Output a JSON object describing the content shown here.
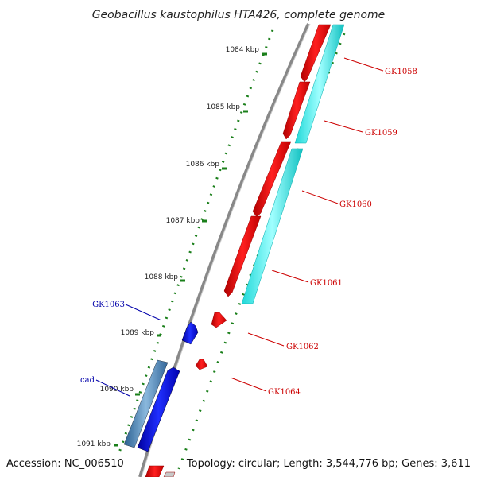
{
  "title": "Geobacillus kaustophilus HTA426, complete genome",
  "footer": {
    "accession": "Accession: NC_006510",
    "topology": "Topology: circular; Length: 3,544,776 bp; Genes: 3,611"
  },
  "ticks": [
    "1084 kbp",
    "1085 kbp",
    "1086 kbp",
    "1087 kbp",
    "1088 kbp",
    "1089 kbp",
    "1090 kbp",
    "1091 kbp"
  ],
  "genes": [
    {
      "name": "GK1058",
      "strand": "forward",
      "color": "#cc0000"
    },
    {
      "name": "GK1059",
      "strand": "forward",
      "color": "#cc0000"
    },
    {
      "name": "GK1060",
      "strand": "forward",
      "color": "#cc0000"
    },
    {
      "name": "GK1061",
      "strand": "forward",
      "color": "#cc0000"
    },
    {
      "name": "GK1062",
      "strand": "forward",
      "color": "#cc0000"
    },
    {
      "name": "GK1063",
      "strand": "reverse",
      "color": "#0000aa"
    },
    {
      "name": "GK1064",
      "strand": "forward",
      "color": "#cc0000"
    },
    {
      "name": "cad",
      "strand": "reverse",
      "color": "#0000aa"
    }
  ],
  "colors": {
    "forward_cds": "#ff0000",
    "reverse_cds": "#0000ff",
    "forward_feature": "#00ffff",
    "reverse_feature": "#4682b4",
    "backbone": "#888888",
    "gc_dots": "#1a7f1a"
  }
}
